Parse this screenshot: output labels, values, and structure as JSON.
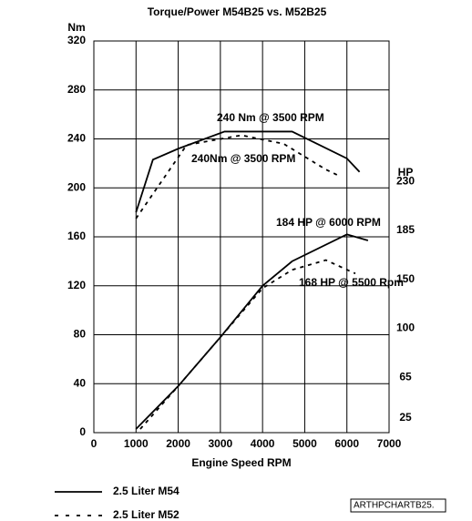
{
  "chart_data": {
    "type": "line",
    "title": "Torque/Power M54B25 vs. M52B25",
    "ylabel": "Nm",
    "y2label": "HP",
    "xlabel": "Engine Speed RPM",
    "xlim": [
      0,
      7000
    ],
    "xticks": [
      0,
      1000,
      2000,
      3000,
      4000,
      5000,
      6000,
      7000
    ],
    "ylim": [
      0,
      320
    ],
    "yticks": [
      0,
      40,
      80,
      120,
      160,
      200,
      240,
      280,
      320
    ],
    "y2ticks": [
      {
        "value": 7,
        "label": "25"
      },
      {
        "value": 40,
        "label": "65"
      },
      {
        "value": 80,
        "label": "100"
      },
      {
        "value": 120,
        "label": "150"
      },
      {
        "value": 160,
        "label": "185"
      },
      {
        "value": 200,
        "label": "230"
      }
    ],
    "grid": true,
    "series": [
      {
        "name": "2.5 Liter M54",
        "color": "#000000",
        "style": "solid",
        "x": [
          1000,
          1400,
          2000,
          3100,
          4700,
          6000,
          6300
        ],
        "values": [
          180,
          223,
          232,
          246,
          246,
          224,
          213
        ]
      },
      {
        "name": "2.5 Liter M52",
        "color": "#000000",
        "style": "dashed",
        "x": [
          1000,
          1500,
          2200,
          3500,
          4500,
          5500,
          5800
        ],
        "values": [
          175,
          200,
          235,
          243,
          236,
          215,
          210
        ]
      },
      {
        "name": "2.5 Liter M54",
        "color": "#000000",
        "style": "solid",
        "x": [
          1000,
          2000,
          3000,
          4000,
          4700,
          6000,
          6500
        ],
        "values": [
          3,
          38,
          78,
          120,
          140,
          162,
          157
        ]
      },
      {
        "name": "2.5 Liter M52",
        "color": "#000000",
        "style": "dashed",
        "x": [
          1100,
          2000,
          3000,
          4000,
          4700,
          5500,
          6200
        ],
        "values": [
          3,
          38,
          78,
          118,
          133,
          141,
          130
        ]
      }
    ],
    "annotations": [
      "240 Nm @ 3500 RPM",
      "240Nm @ 3500 RPM",
      "184 HP @ 6000 RPM",
      "168 HP @ 5500 Rpm"
    ],
    "figure_id": "ARTHPCHARTB25."
  }
}
